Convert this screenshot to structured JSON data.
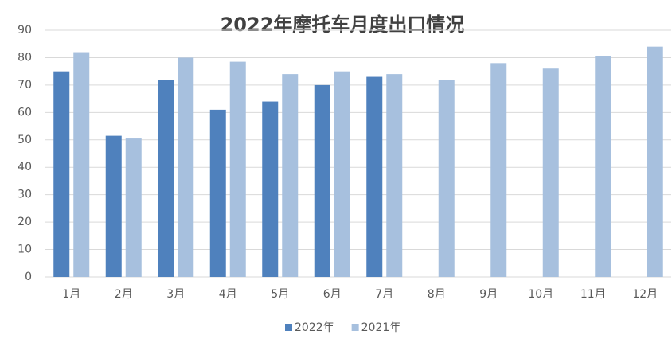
{
  "chart_data": {
    "type": "bar",
    "title": "2022年摩托车月度出口情况",
    "categories": [
      "1月",
      "2月",
      "3月",
      "4月",
      "5月",
      "6月",
      "7月",
      "8月",
      "9月",
      "10月",
      "11月",
      "12月"
    ],
    "series": [
      {
        "name": "2022年",
        "color": "#4f81bd",
        "values": [
          75,
          51.5,
          72,
          61,
          64,
          70,
          73,
          null,
          null,
          null,
          null,
          null
        ]
      },
      {
        "name": "2021年",
        "color": "#a7c0de",
        "values": [
          82,
          50.5,
          80,
          78.5,
          74,
          75,
          74,
          72,
          78,
          76,
          80.5,
          84
        ]
      }
    ],
    "ylim": [
      0,
      90
    ],
    "yticks": [
      0,
      10,
      20,
      30,
      40,
      50,
      60,
      70,
      80,
      90
    ],
    "grid": true,
    "legend": "bottom"
  }
}
